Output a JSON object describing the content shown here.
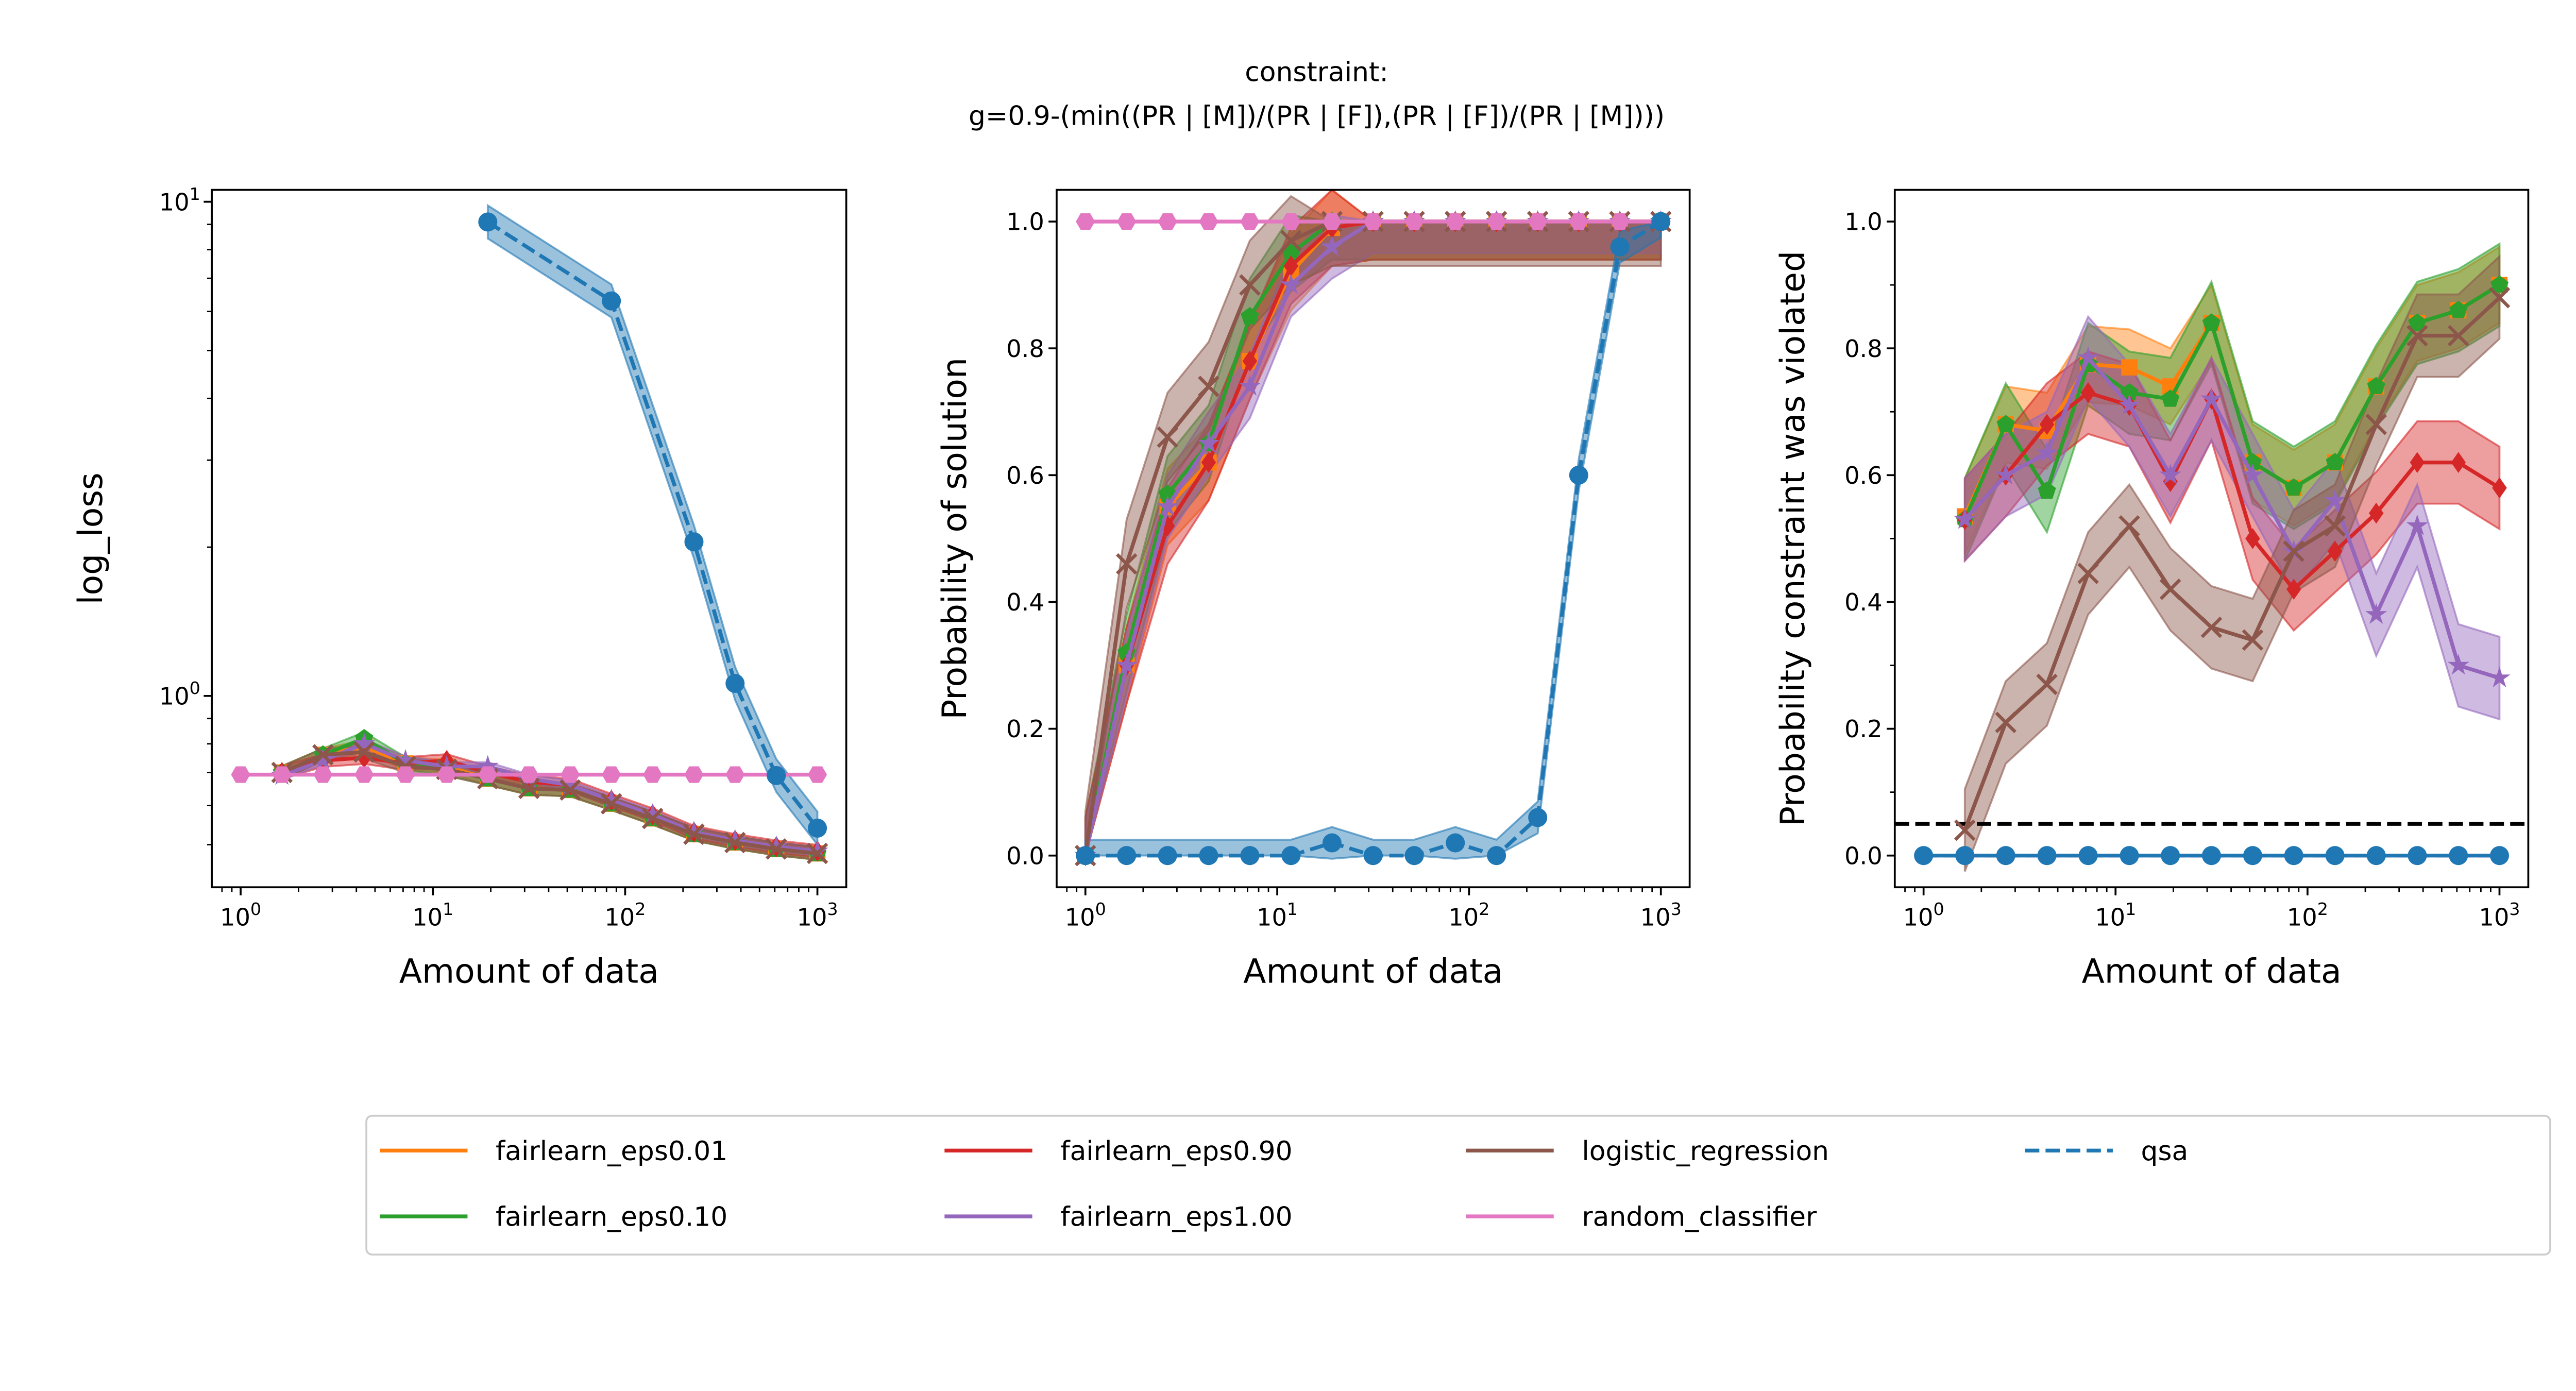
{
  "title": {
    "line1": "constraint:",
    "line2": "g=0.9-(min((PR | [M])/(PR | [F]),(PR | [F])/(PR | [M])))"
  },
  "colors": {
    "qsa": "#1f77b4",
    "fairlearn_eps0.01": "#ff7f0e",
    "fairlearn_eps0.10": "#2ca02c",
    "fairlearn_eps0.90": "#d62728",
    "fairlearn_eps1.00": "#9467bd",
    "logistic_regression": "#8c564b",
    "random_classifier": "#e377c2"
  },
  "legend": {
    "placement": "bottom-center",
    "entries": [
      {
        "label": "fairlearn_eps0.01",
        "series": "fairlearn_eps0.01",
        "style": "solid"
      },
      {
        "label": "fairlearn_eps0.10",
        "series": "fairlearn_eps0.10",
        "style": "solid"
      },
      {
        "label": "fairlearn_eps0.90",
        "series": "fairlearn_eps0.90",
        "style": "solid"
      },
      {
        "label": "fairlearn_eps1.00",
        "series": "fairlearn_eps1.00",
        "style": "solid"
      },
      {
        "label": "logistic_regression",
        "series": "logistic_regression",
        "style": "solid"
      },
      {
        "label": "random_classifier",
        "series": "random_classifier",
        "style": "solid"
      },
      {
        "label": "qsa",
        "series": "qsa",
        "style": "dashed"
      }
    ]
  },
  "chart_data": [
    {
      "type": "line",
      "xlabel": "Amount of data",
      "ylabel": "log_loss",
      "xscale": "log",
      "yscale": "log",
      "xlim": [
        0.708,
        1413
      ],
      "ylim": [
        0.41,
        10.57
      ],
      "xticks": [
        "0",
        "1",
        "2",
        "3"
      ],
      "yticks": [
        {
          "value": 1,
          "exp": "0"
        },
        {
          "value": 10,
          "exp": "1"
        }
      ],
      "grid": false,
      "x": [
        1,
        1.64,
        2.68,
        4.39,
        7.2,
        11.8,
        19.3,
        31.6,
        51.8,
        84.8,
        139,
        228,
        373,
        611,
        1000
      ],
      "series": [
        {
          "name": "fairlearn_eps0.01",
          "marker": "square",
          "band": 0.03,
          "values": [
            null,
            0.7,
            0.76,
            0.79,
            0.73,
            0.72,
            0.68,
            0.65,
            0.645,
            0.605,
            0.565,
            0.525,
            0.505,
            0.49,
            0.48
          ]
        },
        {
          "name": "fairlearn_eps0.10",
          "marker": "pentagon",
          "band": 0.03,
          "values": [
            null,
            0.7,
            0.76,
            0.82,
            0.73,
            0.71,
            0.68,
            0.65,
            0.645,
            0.605,
            0.565,
            0.525,
            0.505,
            0.49,
            0.48
          ]
        },
        {
          "name": "fairlearn_eps0.90",
          "marker": "diamond",
          "band": 0.03,
          "values": [
            null,
            0.7,
            0.74,
            0.75,
            0.73,
            0.74,
            0.7,
            0.67,
            0.66,
            0.615,
            0.575,
            0.53,
            0.51,
            0.495,
            0.485
          ]
        },
        {
          "name": "fairlearn_eps1.00",
          "marker": "star",
          "band": 0.02,
          "values": [
            null,
            0.69,
            0.74,
            0.8,
            0.74,
            0.72,
            0.72,
            0.68,
            0.66,
            0.615,
            0.575,
            0.53,
            0.51,
            0.495,
            0.485
          ]
        },
        {
          "name": "logistic_regression",
          "marker": "x",
          "band": 0.03,
          "values": [
            null,
            0.7,
            0.76,
            0.77,
            0.72,
            0.71,
            0.68,
            0.65,
            0.645,
            0.605,
            0.565,
            0.525,
            0.505,
            0.49,
            0.48
          ]
        },
        {
          "name": "random_classifier",
          "marker": "hexagon",
          "band": 0,
          "values": [
            0.693,
            0.693,
            0.693,
            0.693,
            0.693,
            0.693,
            0.693,
            0.693,
            0.693,
            0.693,
            0.693,
            0.693,
            0.693,
            0.693,
            0.693
          ]
        },
        {
          "name": "qsa",
          "marker": "circle",
          "dashed": true,
          "band": 0.08,
          "values": [
            null,
            null,
            null,
            null,
            null,
            null,
            9.1,
            null,
            null,
            6.3,
            null,
            2.05,
            1.06,
            0.69,
            0.54
          ]
        }
      ]
    },
    {
      "type": "line",
      "xlabel": "Amount of data",
      "ylabel": "Probability of solution",
      "xscale": "log",
      "yscale": "linear",
      "xlim": [
        0.708,
        1413
      ],
      "ylim": [
        -0.05,
        1.05
      ],
      "xticks": [
        "0",
        "1",
        "2",
        "3"
      ],
      "yticks": [
        "0.0",
        "0.2",
        "0.4",
        "0.6",
        "0.8",
        "1.0"
      ],
      "grid": false,
      "x": [
        1,
        1.64,
        2.68,
        4.39,
        7.2,
        11.8,
        19.3,
        31.6,
        51.8,
        84.8,
        139,
        228,
        373,
        611,
        1000
      ],
      "series": [
        {
          "name": "fairlearn_eps0.01",
          "marker": "square",
          "band": 0.06,
          "values": [
            0,
            0.3,
            0.55,
            0.62,
            0.78,
            0.92,
            0.99,
            1,
            1,
            1,
            1,
            1,
            1,
            1,
            1
          ]
        },
        {
          "name": "fairlearn_eps0.10",
          "marker": "pentagon",
          "band": 0.06,
          "values": [
            0,
            0.32,
            0.57,
            0.65,
            0.85,
            0.95,
            1,
            1,
            1,
            1,
            1,
            1,
            1,
            1,
            1
          ]
        },
        {
          "name": "fairlearn_eps0.90",
          "marker": "diamond",
          "band": 0.06,
          "values": [
            0,
            0.3,
            0.52,
            0.62,
            0.78,
            0.93,
            0.99,
            1,
            1,
            1,
            1,
            1,
            1,
            1,
            1
          ]
        },
        {
          "name": "fairlearn_eps1.00",
          "marker": "star",
          "band": 0.05,
          "values": [
            0,
            0.3,
            0.55,
            0.65,
            0.74,
            0.9,
            0.96,
            1,
            1,
            1,
            1,
            1,
            1,
            1,
            1
          ]
        },
        {
          "name": "logistic_regression",
          "marker": "x",
          "band": 0.07,
          "values": [
            0,
            0.46,
            0.66,
            0.74,
            0.9,
            0.97,
            1,
            1,
            1,
            1,
            1,
            1,
            1,
            1,
            1
          ]
        },
        {
          "name": "random_classifier",
          "marker": "hexagon",
          "band": 0,
          "values": [
            1,
            1,
            1,
            1,
            1,
            1,
            1,
            1,
            1,
            1,
            1,
            1,
            1,
            1,
            1
          ]
        },
        {
          "name": "qsa",
          "marker": "circle",
          "dashed": true,
          "band": 0.025,
          "values": [
            0,
            0,
            0,
            0,
            0,
            0,
            0.02,
            0,
            0,
            0.02,
            0,
            0.06,
            0.6,
            0.96,
            1.0
          ]
        }
      ]
    },
    {
      "type": "line",
      "xlabel": "Amount of data",
      "ylabel": "Probability constraint was violated",
      "xscale": "log",
      "yscale": "linear",
      "xlim": [
        0.708,
        1413
      ],
      "ylim": [
        -0.05,
        1.05
      ],
      "xticks": [
        "0",
        "1",
        "2",
        "3"
      ],
      "yticks": [
        "0.0",
        "0.2",
        "0.4",
        "0.6",
        "0.8",
        "1.0"
      ],
      "hline": {
        "y": 0.05,
        "style": "dashed",
        "color": "#000000"
      },
      "grid": false,
      "x": [
        1,
        1.64,
        2.68,
        4.39,
        7.2,
        11.8,
        19.3,
        31.6,
        51.8,
        84.8,
        139,
        228,
        373,
        611,
        1000
      ],
      "series": [
        {
          "name": "fairlearn_eps0.01",
          "marker": "square",
          "band": 0.06,
          "values": [
            null,
            0.535,
            0.68,
            0.67,
            0.775,
            0.77,
            0.74,
            0.84,
            0.62,
            0.58,
            0.62,
            0.74,
            0.84,
            0.86,
            0.9
          ]
        },
        {
          "name": "fairlearn_eps0.10",
          "marker": "pentagon",
          "band": 0.065,
          "values": [
            null,
            0.53,
            0.68,
            0.575,
            0.775,
            0.73,
            0.72,
            0.84,
            0.62,
            0.58,
            0.62,
            0.74,
            0.84,
            0.86,
            0.9
          ]
        },
        {
          "name": "fairlearn_eps0.90",
          "marker": "diamond",
          "band": 0.065,
          "values": [
            null,
            0.53,
            0.6,
            0.68,
            0.73,
            0.71,
            0.59,
            0.72,
            0.5,
            0.42,
            0.48,
            0.54,
            0.62,
            0.62,
            0.58
          ]
        },
        {
          "name": "fairlearn_eps1.00",
          "marker": "star",
          "band": 0.065,
          "values": [
            null,
            0.53,
            0.6,
            0.635,
            0.785,
            0.71,
            0.6,
            0.72,
            0.6,
            0.48,
            0.56,
            0.38,
            0.52,
            0.3,
            0.28
          ]
        },
        {
          "name": "logistic_regression",
          "marker": "x",
          "band": 0.065,
          "values": [
            null,
            0.04,
            0.21,
            0.27,
            0.445,
            0.52,
            0.42,
            0.36,
            0.34,
            0.48,
            0.52,
            0.68,
            0.82,
            0.82,
            0.88
          ]
        },
        {
          "name": "random_classifier",
          "marker": "hexagon",
          "dashed": true,
          "band": 0,
          "values": [
            0,
            0,
            0,
            0,
            0,
            0,
            0,
            0,
            0,
            0,
            0,
            0,
            0,
            0,
            0
          ]
        },
        {
          "name": "qsa",
          "marker": "circle",
          "band": 0,
          "values": [
            0,
            0,
            0,
            0,
            0,
            0,
            0,
            0,
            0,
            0,
            0,
            0,
            0,
            0,
            0
          ]
        }
      ]
    }
  ]
}
